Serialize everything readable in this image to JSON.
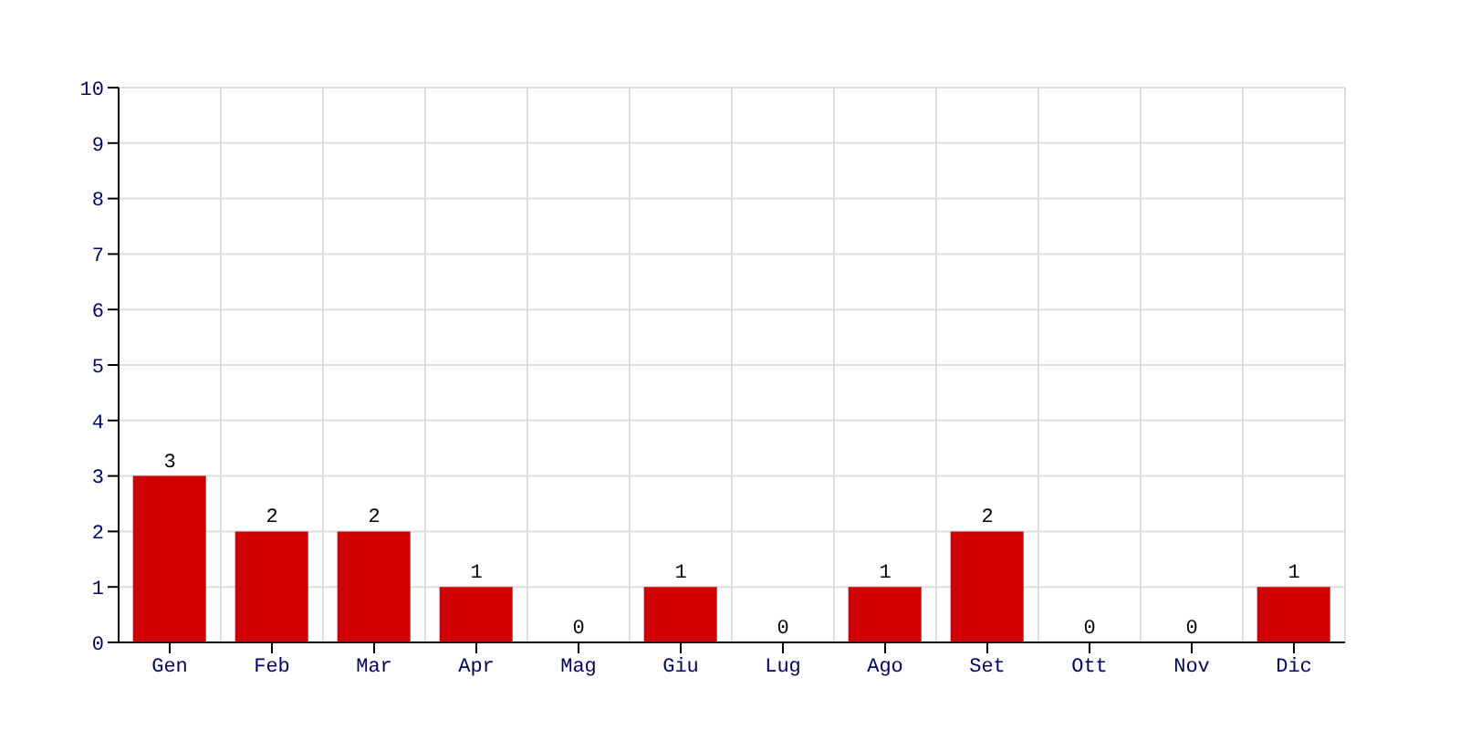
{
  "chart_data": {
    "type": "bar",
    "categories": [
      "Gen",
      "Feb",
      "Mar",
      "Apr",
      "Mag",
      "Giu",
      "Lug",
      "Ago",
      "Set",
      "Ott",
      "Nov",
      "Dic"
    ],
    "values": [
      3,
      2,
      2,
      1,
      0,
      1,
      0,
      1,
      2,
      0,
      0,
      1
    ],
    "color": "#d00000",
    "ylim": [
      0,
      10
    ],
    "yticks": [
      0,
      1,
      2,
      3,
      4,
      5,
      6,
      7,
      8,
      9,
      10
    ],
    "grid": true,
    "data_labels": true
  }
}
